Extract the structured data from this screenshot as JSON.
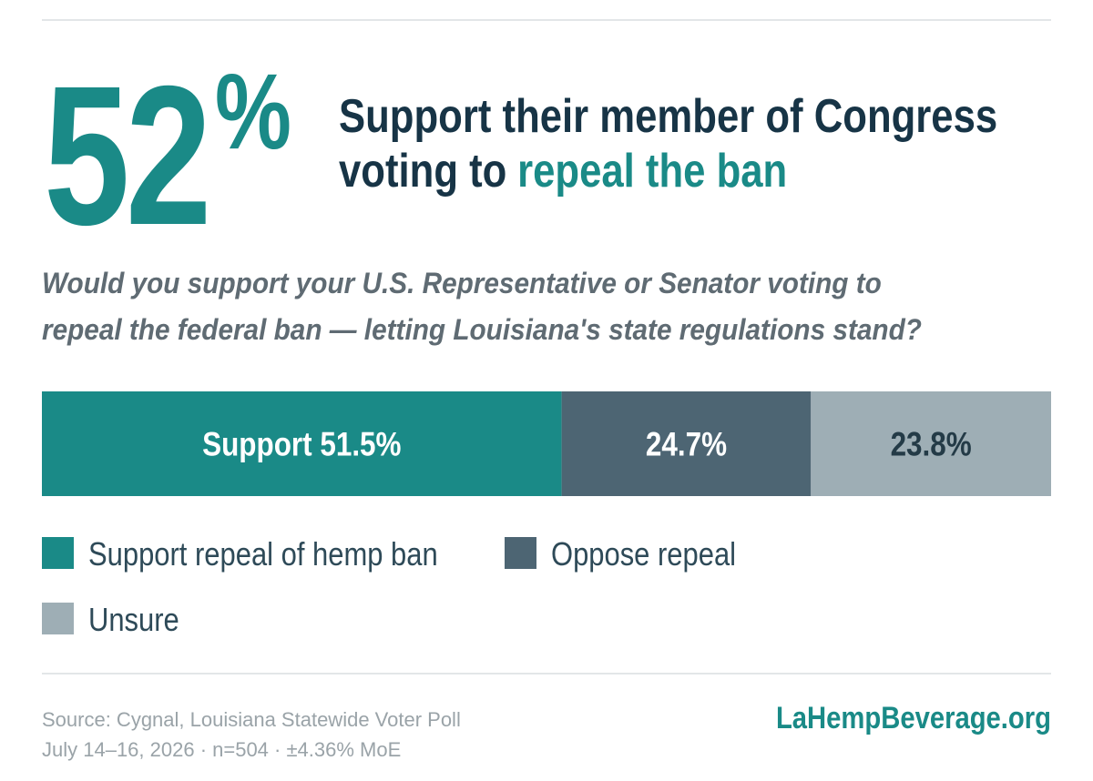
{
  "big_number": "52",
  "big_unit": "%",
  "headline": {
    "line1": "Support their member of Congress",
    "line2": "voting to",
    "highlight": "repeal the ban"
  },
  "question": [
    "Would you support your U.S. Representative or Senator voting to",
    "repeal the federal ban — letting Louisiana's state regulations stand?"
  ],
  "chart_data": {
    "type": "bar",
    "orientation": "horizontal",
    "stacked": true,
    "categories": [
      null
    ],
    "xlim": [
      0,
      100
    ],
    "series": [
      {
        "name": "Support repeal of hemp ban",
        "color": "#1a8a87",
        "values": [
          51.5
        ],
        "value_labels": [
          "Support 51.5%"
        ],
        "label_color": "#ffffff"
      },
      {
        "name": "Oppose repeal",
        "color": "#4d6573",
        "values": [
          24.7
        ],
        "value_labels": [
          "24.7%"
        ],
        "label_color": "#ffffff"
      },
      {
        "name": "Unsure",
        "color": "#9eaeb5",
        "values": [
          23.8
        ],
        "value_labels": [
          "23.8%"
        ],
        "label_color": "#243b47"
      }
    ]
  },
  "source": [
    "Source: Cygnal, Louisiana Statewide Voter Poll",
    "July 14–16, 2026 · n=504 · ±4.36% MoE"
  ],
  "website": "LaHempBeverage.org"
}
